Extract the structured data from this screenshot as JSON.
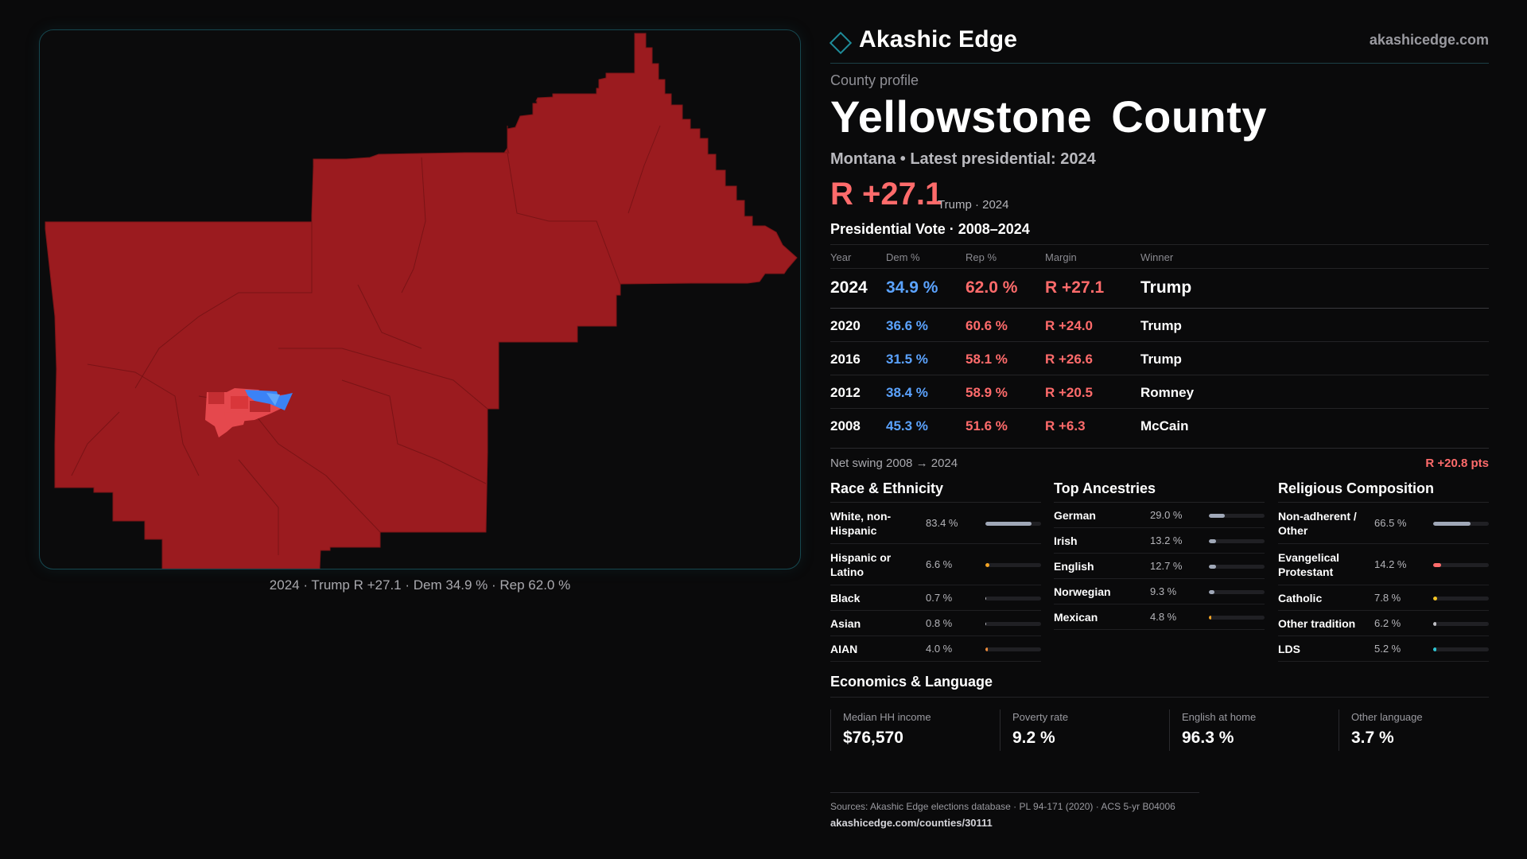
{
  "brand": {
    "name": "Akashic Edge",
    "url": "akashicedge.com",
    "icon": "diamond-icon"
  },
  "profile": {
    "eyebrow": "County profile",
    "title": "Yellowstone County",
    "subtitle": "Montana • Latest presidential: 2024",
    "margin": "R +27.1",
    "margin_note": "Trump · 2024"
  },
  "map": {
    "caption": "2024 · Trump R +27.1 · Dem 34.9 % · Rep 62.0 %",
    "colors": {
      "rep_strong": "#9b1b1f",
      "rep_light": "#e5484d",
      "dem": "#3b82f6",
      "dem_light": "#60a5fa",
      "border": "#16474f"
    }
  },
  "vote": {
    "title": "Presidential Vote · 2008–2024",
    "headers": {
      "year": "Year",
      "dem": "Dem %",
      "rep": "Rep %",
      "margin": "Margin",
      "winner": "Winner"
    },
    "rows": [
      {
        "year": "2024",
        "dem": "34.9 %",
        "rep": "62.0 %",
        "margin": "R +27.1",
        "winner": "Trump"
      },
      {
        "year": "2020",
        "dem": "36.6 %",
        "rep": "60.6 %",
        "margin": "R +24.0",
        "winner": "Trump"
      },
      {
        "year": "2016",
        "dem": "31.5 %",
        "rep": "58.1 %",
        "margin": "R +26.6",
        "winner": "Trump"
      },
      {
        "year": "2012",
        "dem": "38.4 %",
        "rep": "58.9 %",
        "margin": "R +20.5",
        "winner": "Romney"
      },
      {
        "year": "2008",
        "dem": "45.3 %",
        "rep": "51.6 %",
        "margin": "R +6.3",
        "winner": "McCain"
      }
    ],
    "swing_label": "Net swing 2008 → 2024",
    "swing_value": "R +20.8 pts"
  },
  "race": {
    "title": "Race & Ethnicity",
    "items": [
      {
        "label": "White, non-Hispanic",
        "pct": "83.4 %",
        "value": 83.4,
        "color": "#a0a8b8"
      },
      {
        "label": "Hispanic or Latino",
        "pct": "6.6 %",
        "value": 6.6,
        "color": "#f5a524"
      },
      {
        "label": "Black",
        "pct": "0.7 %",
        "value": 0.7,
        "color": "#c0c0c5"
      },
      {
        "label": "Asian",
        "pct": "0.8 %",
        "value": 0.8,
        "color": "#c0c0c5"
      },
      {
        "label": "AIAN",
        "pct": "4.0 %",
        "value": 4.0,
        "color": "#f08c3a"
      }
    ]
  },
  "ancestry": {
    "title": "Top Ancestries",
    "items": [
      {
        "label": "German",
        "pct": "29.0 %",
        "value": 29.0,
        "color": "#a0a8b8"
      },
      {
        "label": "Irish",
        "pct": "13.2 %",
        "value": 13.2,
        "color": "#a0a8b8"
      },
      {
        "label": "English",
        "pct": "12.7 %",
        "value": 12.7,
        "color": "#a0a8b8"
      },
      {
        "label": "Norwegian",
        "pct": "9.3 %",
        "value": 9.3,
        "color": "#a0a8b8"
      },
      {
        "label": "Mexican",
        "pct": "4.8 %",
        "value": 4.8,
        "color": "#f5a524"
      }
    ]
  },
  "religion": {
    "title": "Religious Composition",
    "items": [
      {
        "label": "Non-adherent / Other",
        "pct": "66.5 %",
        "value": 66.5,
        "color": "#a0a8b8"
      },
      {
        "label": "Evangelical Protestant",
        "pct": "14.2 %",
        "value": 14.2,
        "color": "#ff6b6b"
      },
      {
        "label": "Catholic",
        "pct": "7.8 %",
        "value": 7.8,
        "color": "#f5c524"
      },
      {
        "label": "Other tradition",
        "pct": "6.2 %",
        "value": 6.2,
        "color": "#c0c0c5"
      },
      {
        "label": "LDS",
        "pct": "5.2 %",
        "value": 5.2,
        "color": "#2ec5d3"
      }
    ]
  },
  "economics": {
    "title": "Economics & Language",
    "items": [
      {
        "label": "Median HH income",
        "value": "$76,570"
      },
      {
        "label": "Poverty rate",
        "value": "9.2 %"
      },
      {
        "label": "English at home",
        "value": "96.3 %"
      },
      {
        "label": "Other language",
        "value": "3.7 %"
      }
    ]
  },
  "sources": {
    "line": "Sources: Akashic Edge elections database · PL 94-171 (2020) · ACS 5-yr B04006",
    "url": "akashicedge.com/counties/30111"
  }
}
